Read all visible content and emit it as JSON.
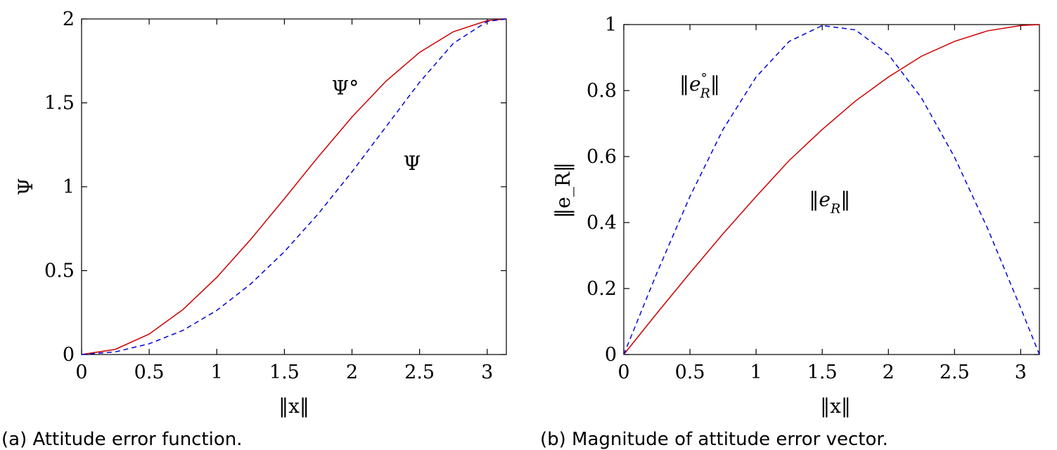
{
  "chart_data": [
    {
      "type": "line",
      "caption": "(a) Attitude error function.",
      "xlabel": "‖x‖",
      "ylabel": "Ψ",
      "xlim": [
        0,
        3.1416
      ],
      "ylim": [
        0,
        2
      ],
      "xticks": [
        "0",
        "0.5",
        "1",
        "1.5",
        "2",
        "2.5",
        "3"
      ],
      "yticks": [
        "0",
        "0.5",
        "1",
        "1.5",
        "2"
      ],
      "grid": false,
      "series": [
        {
          "name": "Ψ",
          "color": "#cc0000",
          "style": "solid",
          "x": [
            0,
            0.25,
            0.5,
            0.75,
            1.0,
            1.25,
            1.5,
            1.75,
            2.0,
            2.25,
            2.5,
            2.75,
            3.0,
            3.1416
          ],
          "y": [
            0,
            0.031,
            0.122,
            0.268,
            0.46,
            0.685,
            0.929,
            1.178,
            1.416,
            1.628,
            1.801,
            1.924,
            1.99,
            2.0
          ]
        },
        {
          "name": "Ψ°",
          "color": "#0000dd",
          "style": "dashed",
          "x": [
            0,
            0.25,
            0.5,
            0.75,
            1.0,
            1.25,
            1.5,
            1.75,
            2.0,
            2.25,
            2.5,
            2.75,
            3.0,
            3.1416
          ],
          "y": [
            0,
            0.016,
            0.064,
            0.144,
            0.263,
            0.42,
            0.613,
            0.838,
            1.089,
            1.356,
            1.623,
            1.855,
            1.985,
            2.0
          ]
        }
      ],
      "annotations": [
        {
          "text": "Ψ°",
          "x": 1.85,
          "y": 1.55
        },
        {
          "text": "Ψ",
          "x": 2.38,
          "y": 1.1
        }
      ]
    },
    {
      "type": "line",
      "caption": "(b) Magnitude of attitude error vector.",
      "xlabel": "‖x‖",
      "ylabel": "‖e_R‖",
      "xlim": [
        0,
        3.1416
      ],
      "ylim": [
        0,
        1
      ],
      "xticks": [
        "0",
        "0.5",
        "1",
        "1.5",
        "2",
        "2.5",
        "3"
      ],
      "yticks": [
        "0",
        "0.2",
        "0.4",
        "0.6",
        "0.8",
        "1"
      ],
      "grid": false,
      "series": [
        {
          "name": "‖e_R‖",
          "color": "#cc0000",
          "style": "solid",
          "x": [
            0,
            0.25,
            0.5,
            0.75,
            1.0,
            1.25,
            1.5,
            1.75,
            2.0,
            2.25,
            2.5,
            2.75,
            3.0,
            3.1416
          ],
          "y": [
            0,
            0.125,
            0.247,
            0.366,
            0.479,
            0.588,
            0.682,
            0.768,
            0.841,
            0.904,
            0.949,
            0.981,
            0.997,
            1.0
          ]
        },
        {
          "name": "‖e_R°‖",
          "color": "#0000dd",
          "style": "dashed",
          "x": [
            0,
            0.25,
            0.5,
            0.75,
            1.0,
            1.25,
            1.5,
            1.75,
            2.0,
            2.25,
            2.5,
            2.75,
            3.0,
            3.1416
          ],
          "y": [
            0,
            0.247,
            0.479,
            0.682,
            0.841,
            0.949,
            0.997,
            0.984,
            0.909,
            0.778,
            0.598,
            0.382,
            0.141,
            0.0
          ]
        }
      ],
      "annotations": [
        {
          "text": "‖e",
          "sub": "R",
          "sup": "°",
          "tail": "‖",
          "x": 0.42,
          "y": 0.8
        },
        {
          "text": "‖e",
          "sub": "R",
          "tail": "‖",
          "x": 1.4,
          "y": 0.45
        }
      ]
    }
  ]
}
